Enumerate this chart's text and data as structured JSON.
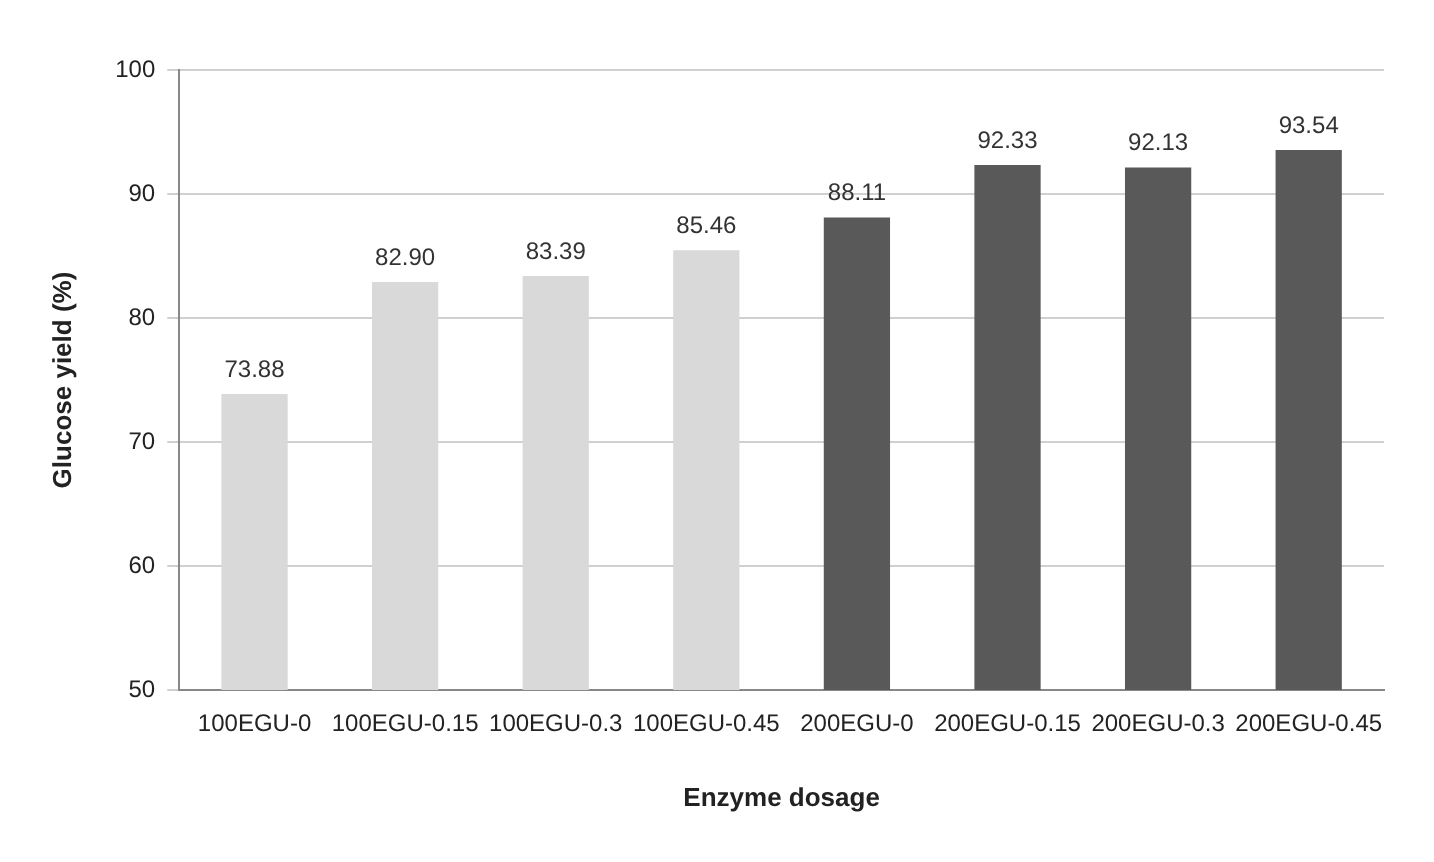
{
  "chart_data": {
    "type": "bar",
    "xlabel": "Enzyme dosage",
    "ylabel": "Glucose yield (%)",
    "categories": [
      "100EGU-0",
      "100EGU-0.15",
      "100EGU-0.3",
      "100EGU-0.45",
      "200EGU-0",
      "200EGU-0.15",
      "200EGU-0.3",
      "200EGU-0.45"
    ],
    "values": [
      73.88,
      82.9,
      83.39,
      85.46,
      88.11,
      92.33,
      92.13,
      93.54
    ],
    "value_labels": [
      "73.88",
      "82.90",
      "83.39",
      "85.46",
      "88.11",
      "92.33",
      "92.13",
      "93.54"
    ],
    "colors": [
      "#d9d9d9",
      "#d9d9d9",
      "#d9d9d9",
      "#d9d9d9",
      "#595959",
      "#595959",
      "#595959",
      "#595959"
    ],
    "ylim": [
      50,
      100
    ],
    "yticks": [
      50,
      60,
      70,
      80,
      90,
      100
    ],
    "grid": "y",
    "legend": false
  }
}
